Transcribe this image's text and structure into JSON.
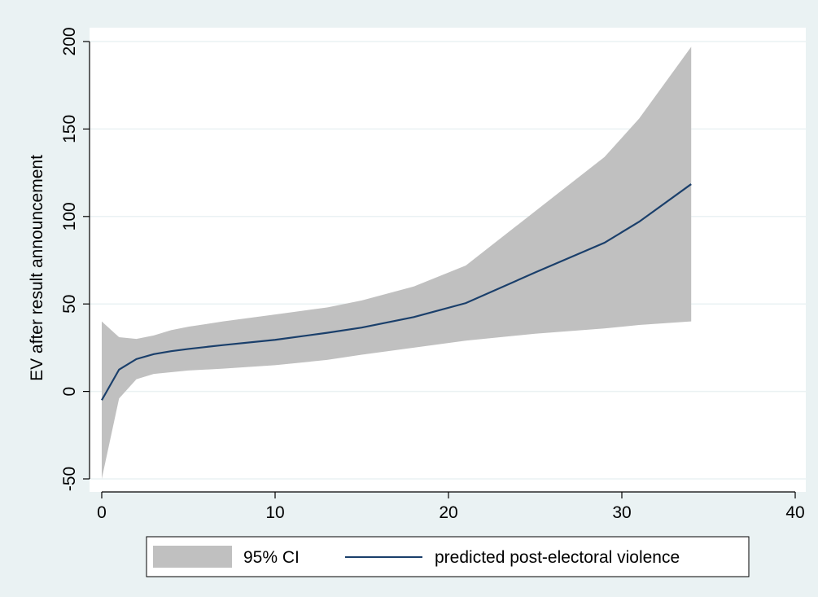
{
  "chart_data": {
    "type": "line",
    "title": "",
    "xlabel": "",
    "ylabel": "EV after result announcement",
    "xlim": [
      0,
      40
    ],
    "ylim": [
      -50,
      200
    ],
    "xticks": [
      0,
      10,
      20,
      30,
      40
    ],
    "yticks": [
      -50,
      0,
      50,
      100,
      150,
      200
    ],
    "grid": "horizontal",
    "legend_position": "bottom",
    "series": [
      {
        "name": "95% CI",
        "kind": "area-band",
        "color": "#c0c0c0",
        "x": [
          0,
          1,
          2,
          3,
          4,
          5,
          7,
          10,
          13,
          15,
          18,
          21,
          25,
          29,
          31,
          34
        ],
        "lower": [
          -50,
          -4,
          7,
          10,
          11,
          12,
          13,
          15,
          18,
          21,
          25,
          29,
          33,
          36,
          38,
          40
        ],
        "upper": [
          40,
          31,
          30,
          32,
          35,
          37,
          40,
          44,
          48,
          52,
          60,
          72,
          103,
          134,
          156,
          197
        ]
      },
      {
        "name": "predicted post-electoral violence",
        "kind": "line",
        "color": "#1a3f6b",
        "x": [
          0,
          1,
          2,
          3,
          4,
          5,
          7,
          10,
          13,
          15,
          18,
          21,
          25,
          29,
          31,
          34
        ],
        "y": [
          -5,
          12.5,
          18.5,
          21.3,
          23,
          24.3,
          26.5,
          29.5,
          33.5,
          36.5,
          42.5,
          50.5,
          68,
          85,
          97,
          118.5
        ]
      }
    ]
  }
}
